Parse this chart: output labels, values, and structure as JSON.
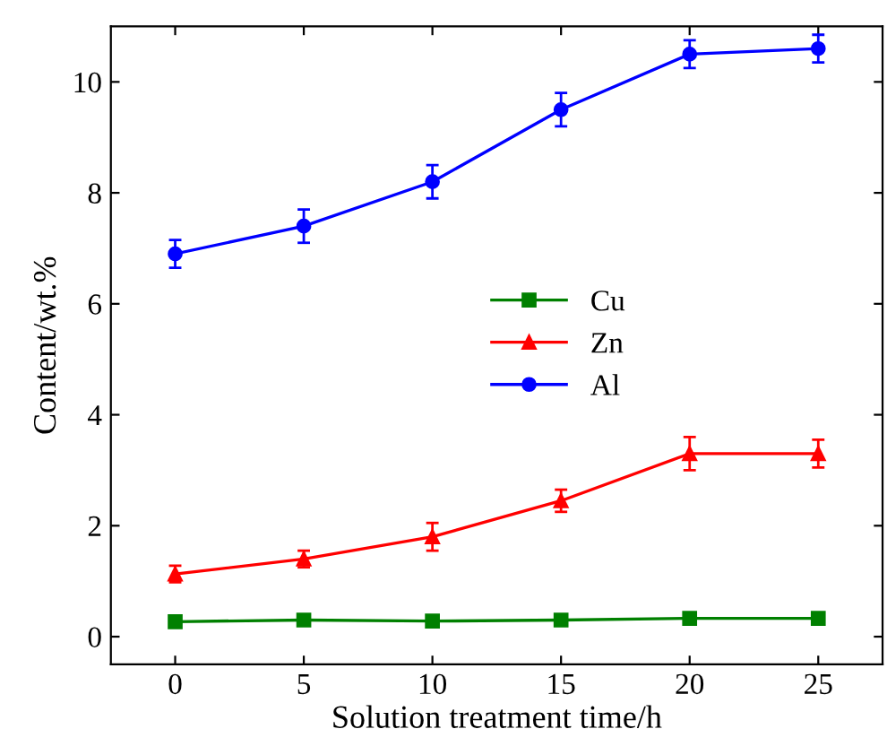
{
  "chart_data": {
    "type": "line",
    "xlabel": "Solution treatment time/h",
    "ylabel": "Content/wt.%",
    "x": [
      0,
      5,
      10,
      15,
      20,
      25
    ],
    "series": [
      {
        "name": "Cu",
        "color": "#008000",
        "marker": "square",
        "values": [
          0.27,
          0.3,
          0.28,
          0.3,
          0.33,
          0.33
        ],
        "errors": [
          0.05,
          0.05,
          0.05,
          0.05,
          0.05,
          0.05
        ]
      },
      {
        "name": "Zn",
        "color": "#ff0000",
        "marker": "triangle",
        "values": [
          1.13,
          1.4,
          1.8,
          2.45,
          3.3,
          3.3
        ],
        "errors": [
          0.15,
          0.15,
          0.25,
          0.2,
          0.3,
          0.25
        ]
      },
      {
        "name": "Al",
        "color": "#0000ff",
        "marker": "circle",
        "values": [
          6.9,
          7.4,
          8.2,
          9.5,
          10.5,
          10.6
        ],
        "errors": [
          0.25,
          0.3,
          0.3,
          0.3,
          0.25,
          0.25
        ]
      }
    ],
    "xlim": [
      -2.5,
      27.5
    ],
    "xticks": [
      0,
      5,
      10,
      15,
      20,
      25
    ],
    "ylim": [
      -0.5,
      11
    ],
    "yticks": [
      0,
      2,
      4,
      6,
      8,
      10
    ],
    "grid": false,
    "legend": "center"
  }
}
